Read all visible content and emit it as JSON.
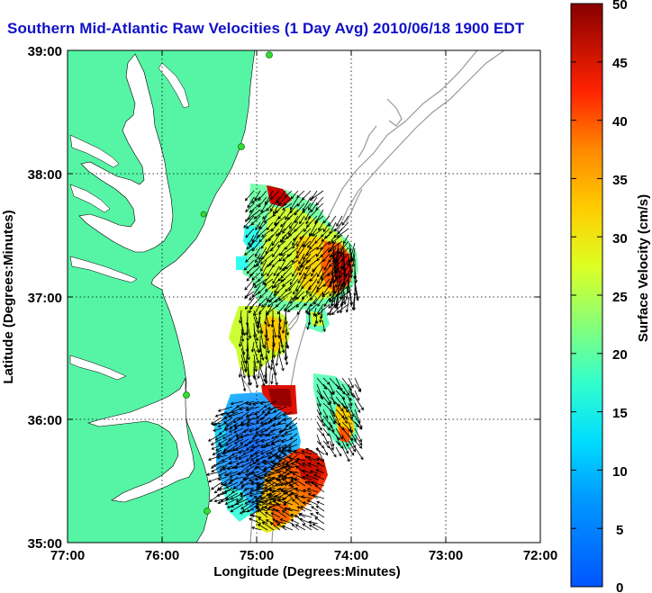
{
  "title": "Southern Mid-Atlantic Raw Velocities (1 Day Avg) 2010/06/18 1900 EDT",
  "axes": {
    "xlabel": "Longitude (Degrees:Minutes)",
    "ylabel": "Latitude (Degrees:Minutes)",
    "x_ticks": [
      "77:00",
      "76:00",
      "75:00",
      "74:00",
      "73:00",
      "72:00"
    ],
    "y_ticks": [
      "39:00",
      "38:00",
      "37:00",
      "36:00",
      "35:00"
    ],
    "xlim": [
      -77,
      -72
    ],
    "ylim": [
      35,
      39
    ],
    "grid": "dotted"
  },
  "colorbar": {
    "label": "Surface Velocity (cm/s)",
    "ticks": [
      "50",
      "45",
      "40",
      "35",
      "30",
      "25",
      "20",
      "15",
      "10",
      "5",
      "0"
    ],
    "range": [
      0,
      50
    ],
    "colormap": "jet"
  },
  "colors": {
    "land": "#55f5a5",
    "title": "#1010c8",
    "bathymetry": "#999999",
    "station": "#33dd33"
  }
}
